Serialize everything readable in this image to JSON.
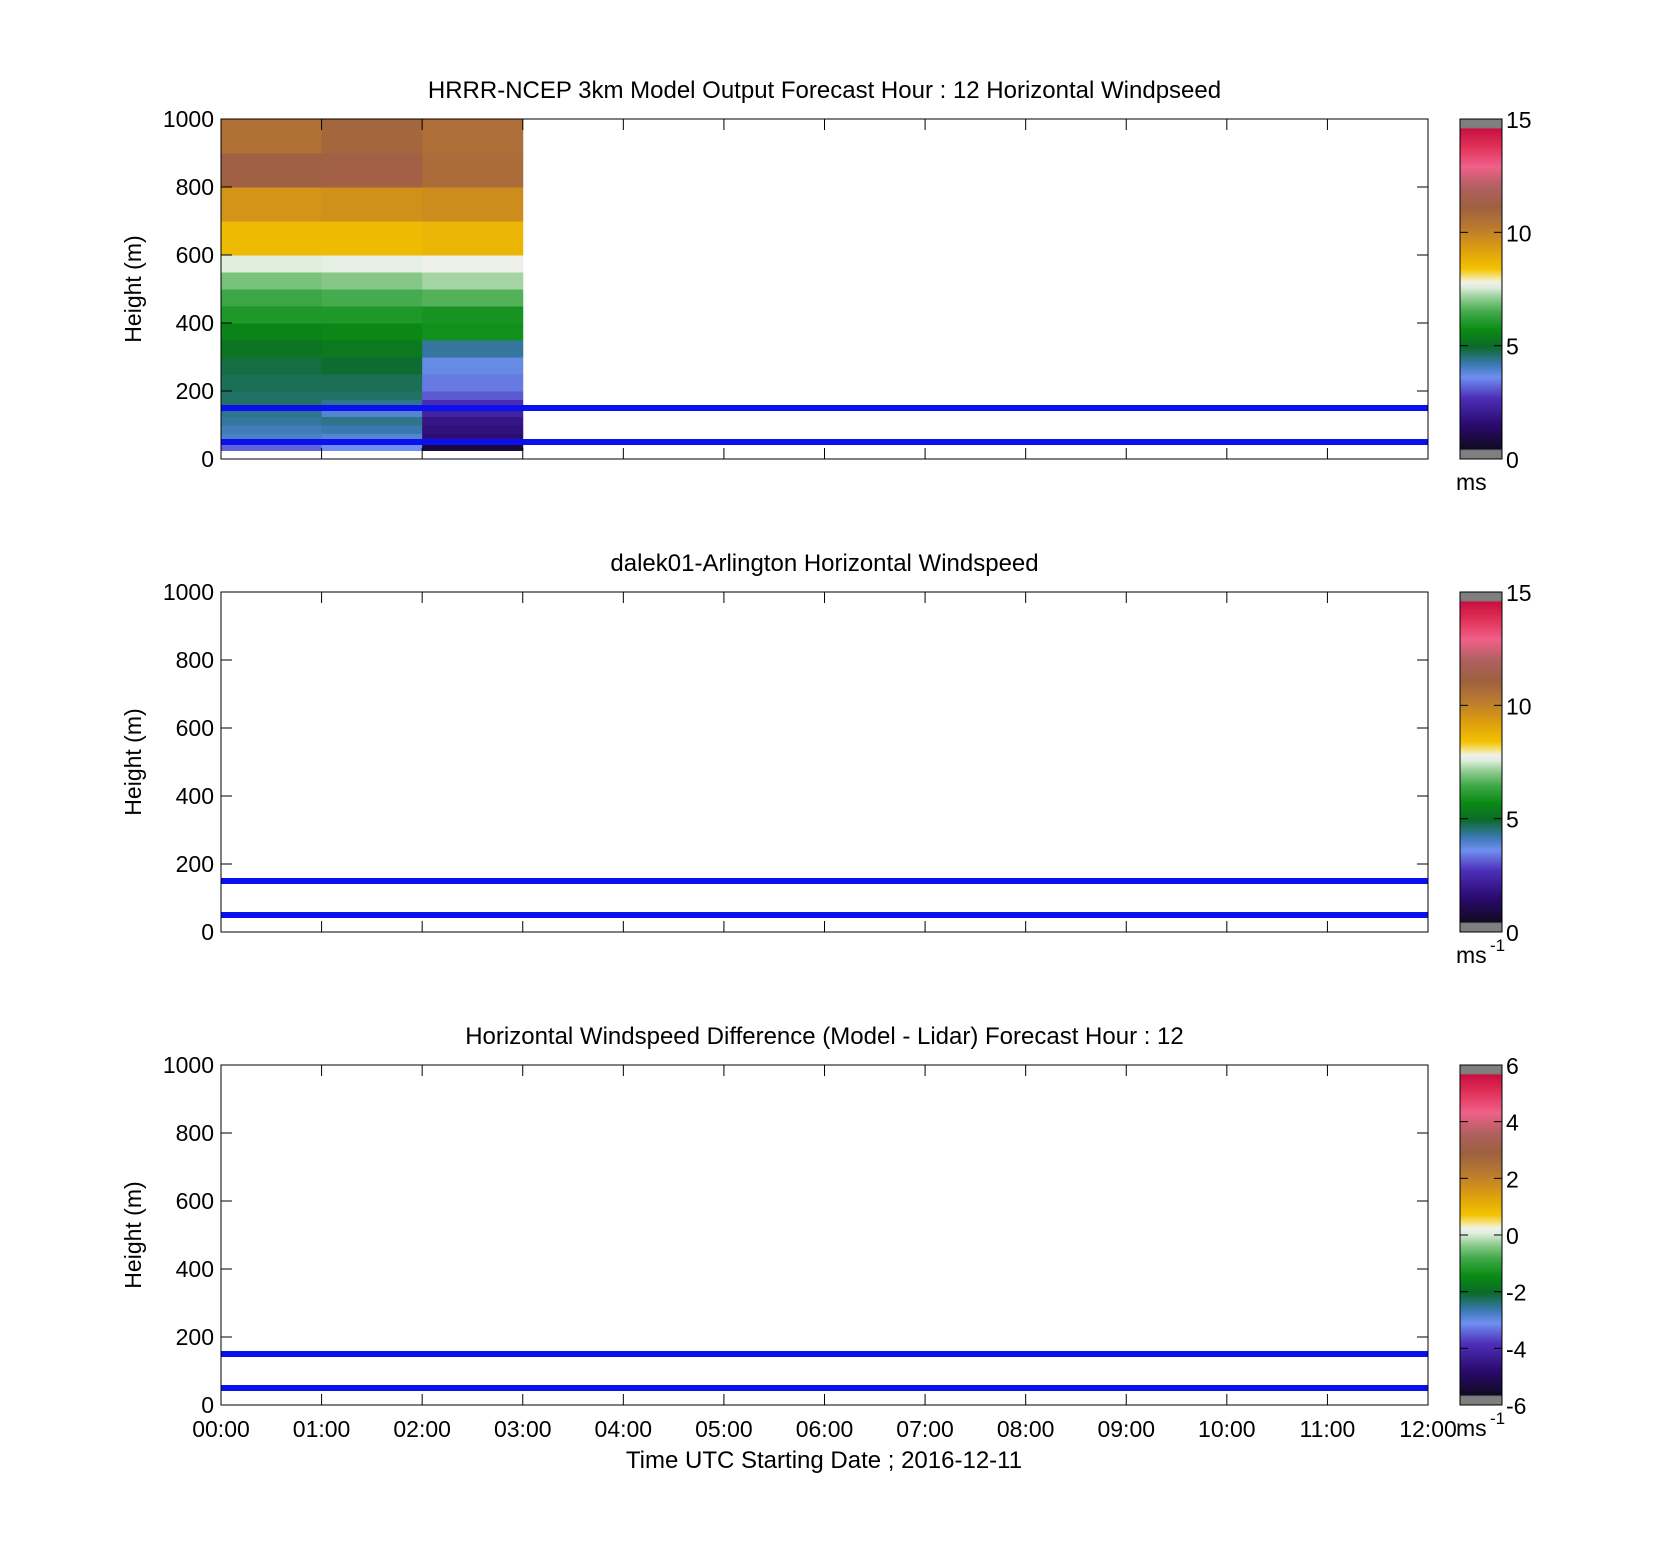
{
  "colors": {
    "guide_line": "#0a10ee",
    "axis": "#000000",
    "background": "#ffffff"
  },
  "colormap": [
    [
      0.0,
      "#7f7f7f"
    ],
    [
      0.025,
      "#7f7f7f"
    ],
    [
      0.03,
      "#120a22"
    ],
    [
      0.1,
      "#2a0a6e"
    ],
    [
      0.18,
      "#4d2fb8"
    ],
    [
      0.24,
      "#6f8ff0"
    ],
    [
      0.28,
      "#3a78b0"
    ],
    [
      0.33,
      "#0b6a28"
    ],
    [
      0.38,
      "#0a8c14"
    ],
    [
      0.43,
      "#3fa848"
    ],
    [
      0.47,
      "#8cca8c"
    ],
    [
      0.505,
      "#dfeedd"
    ],
    [
      0.52,
      "#eef1ea"
    ],
    [
      0.53,
      "#f6e9a0"
    ],
    [
      0.56,
      "#f2c200"
    ],
    [
      0.62,
      "#dc9c10"
    ],
    [
      0.68,
      "#b97a30"
    ],
    [
      0.74,
      "#9e6040"
    ],
    [
      0.8,
      "#b06060"
    ],
    [
      0.86,
      "#f0608a"
    ],
    [
      0.92,
      "#e03058"
    ],
    [
      0.97,
      "#c81040"
    ],
    [
      0.975,
      "#7f7f7f"
    ],
    [
      1.0,
      "#7f7f7f"
    ]
  ],
  "chart_data": [
    {
      "type": "heatmap",
      "title": "HRRR-NCEP 3km Model Output   Forecast Hour : 12 Horizontal Windpseed",
      "ylabel": "Height (m)",
      "ylim": [
        0,
        1000
      ],
      "yticks": [
        "0",
        "200",
        "400",
        "600",
        "800",
        "1000"
      ],
      "xlim_hours": [
        0,
        12
      ],
      "xticks": [
        "00:00",
        "01:00",
        "02:00",
        "03:00",
        "04:00",
        "05:00",
        "06:00",
        "07:00",
        "08:00",
        "09:00",
        "10:00",
        "11:00",
        "12:00"
      ],
      "show_xticklabels": false,
      "hlines_m": [
        150,
        50
      ],
      "colorbar": {
        "min": 0,
        "max": 15,
        "ticks": [
          "0",
          "5",
          "10",
          "15"
        ],
        "tick_values": [
          0,
          5,
          10,
          15
        ],
        "unit": "ms",
        "unit_sup": ""
      },
      "cells": {
        "x_edges_hours": [
          0,
          1,
          2,
          3
        ],
        "z_edges_m": [
          25,
          50,
          75,
          100,
          125,
          150,
          175,
          200,
          250,
          300,
          350,
          400,
          450,
          500,
          550,
          600,
          700,
          800,
          900,
          1000
        ],
        "values": [
          [
            3.2,
            3.6,
            0.8
          ],
          [
            4.0,
            3.9,
            1.6
          ],
          [
            4.1,
            4.2,
            1.7
          ],
          [
            4.3,
            4.4,
            1.9
          ],
          [
            4.4,
            3.9,
            2.3
          ],
          [
            4.6,
            4.4,
            2.6
          ],
          [
            4.6,
            4.6,
            3.1
          ],
          [
            4.7,
            4.7,
            3.4
          ],
          [
            4.8,
            4.9,
            3.7
          ],
          [
            5.2,
            5.3,
            4.3
          ],
          [
            5.5,
            5.6,
            5.8
          ],
          [
            6.0,
            6.0,
            5.9
          ],
          [
            6.4,
            6.5,
            6.6
          ],
          [
            6.9,
            7.0,
            7.2
          ],
          [
            7.6,
            7.7,
            7.8
          ],
          [
            8.6,
            8.6,
            8.7
          ],
          [
            9.5,
            9.6,
            9.7
          ],
          [
            11.2,
            11.3,
            10.7
          ],
          [
            10.5,
            10.9,
            10.6
          ]
        ]
      }
    },
    {
      "type": "heatmap",
      "title": "dalek01-Arlington  Horizontal Windspeed",
      "ylabel": "Height (m)",
      "ylim": [
        0,
        1000
      ],
      "yticks": [
        "0",
        "200",
        "400",
        "600",
        "800",
        "1000"
      ],
      "xlim_hours": [
        0,
        12
      ],
      "xticks": [
        "00:00",
        "01:00",
        "02:00",
        "03:00",
        "04:00",
        "05:00",
        "06:00",
        "07:00",
        "08:00",
        "09:00",
        "10:00",
        "11:00",
        "12:00"
      ],
      "show_xticklabels": false,
      "hlines_m": [
        150,
        50
      ],
      "colorbar": {
        "min": 0,
        "max": 15,
        "ticks": [
          "0",
          "5",
          "10",
          "15"
        ],
        "tick_values": [
          0,
          5,
          10,
          15
        ],
        "unit": "ms",
        "unit_sup": "-1"
      },
      "cells": null
    },
    {
      "type": "heatmap",
      "title": "Horizontal Windspeed Difference (Model - Lidar) Forecast Hour : 12",
      "ylabel": "Height (m)",
      "ylim": [
        0,
        1000
      ],
      "yticks": [
        "0",
        "200",
        "400",
        "600",
        "800",
        "1000"
      ],
      "xlim_hours": [
        0,
        12
      ],
      "xticks": [
        "00:00",
        "01:00",
        "02:00",
        "03:00",
        "04:00",
        "05:00",
        "06:00",
        "07:00",
        "08:00",
        "09:00",
        "10:00",
        "11:00",
        "12:00"
      ],
      "show_xticklabels": true,
      "xlabel": "Time UTC  Starting Date ; 2016-12-11",
      "hlines_m": [
        150,
        50
      ],
      "colorbar": {
        "min": -6,
        "max": 6,
        "ticks": [
          "-6",
          "-4",
          "-2",
          "0",
          "2",
          "4",
          "6"
        ],
        "tick_values": [
          -6,
          -4,
          -2,
          0,
          2,
          4,
          6
        ],
        "unit": "ms",
        "unit_sup": "-1"
      },
      "cells": null
    }
  ]
}
